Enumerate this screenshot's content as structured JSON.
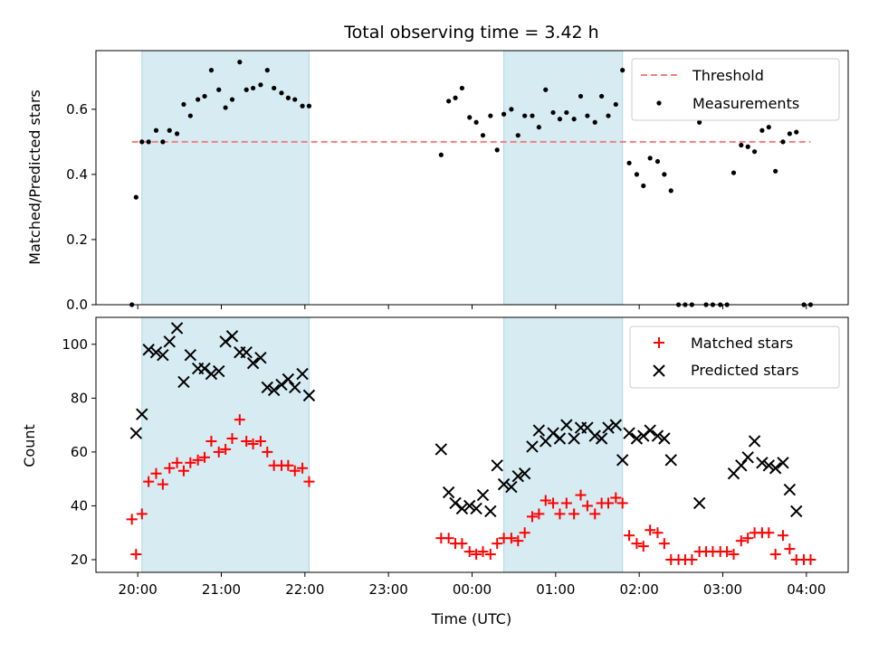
{
  "chart_data": {
    "type": "scatter",
    "title": "Total observing time = 3.42 h",
    "xlabel": "Time (UTC)",
    "x_ticks": [
      "20:00",
      "21:00",
      "22:00",
      "23:00",
      "00:00",
      "01:00",
      "02:00",
      "03:00",
      "04:00"
    ],
    "x_range_hours": [
      19.5,
      28.5
    ],
    "shaded_intervals": [
      [
        20.05,
        22.05
      ],
      [
        24.38,
        25.8
      ]
    ],
    "colors": {
      "shade": "#add8e6",
      "threshold": "#f08080",
      "measurements": "#000000",
      "matched": "#ff0000",
      "predicted": "#000000"
    },
    "top": {
      "ylabel": "Matched/Predicted stars",
      "ylim": [
        0,
        0.78
      ],
      "y_ticks": [
        "0.0",
        "0.2",
        "0.4",
        "0.6"
      ],
      "threshold": {
        "name": "Threshold",
        "y": 0.5,
        "x_range": [
          19.93,
          28.05
        ]
      },
      "measurements": {
        "name": "Measurements",
        "points": [
          [
            19.93,
            0.0
          ],
          [
            19.98,
            0.33
          ],
          [
            20.05,
            0.5
          ],
          [
            20.13,
            0.5
          ],
          [
            20.22,
            0.535
          ],
          [
            20.3,
            0.5
          ],
          [
            20.38,
            0.535
          ],
          [
            20.47,
            0.525
          ],
          [
            20.55,
            0.615
          ],
          [
            20.63,
            0.58
          ],
          [
            20.72,
            0.63
          ],
          [
            20.8,
            0.64
          ],
          [
            20.88,
            0.72
          ],
          [
            20.97,
            0.66
          ],
          [
            21.05,
            0.605
          ],
          [
            21.13,
            0.63
          ],
          [
            21.22,
            0.745
          ],
          [
            21.3,
            0.66
          ],
          [
            21.38,
            0.665
          ],
          [
            21.47,
            0.675
          ],
          [
            21.55,
            0.72
          ],
          [
            21.63,
            0.665
          ],
          [
            21.72,
            0.65
          ],
          [
            21.8,
            0.635
          ],
          [
            21.88,
            0.63
          ],
          [
            21.97,
            0.61
          ],
          [
            22.05,
            0.61
          ],
          [
            23.63,
            0.46
          ],
          [
            23.72,
            0.625
          ],
          [
            23.8,
            0.635
          ],
          [
            23.88,
            0.665
          ],
          [
            23.97,
            0.575
          ],
          [
            24.05,
            0.56
          ],
          [
            24.13,
            0.52
          ],
          [
            24.22,
            0.58
          ],
          [
            24.3,
            0.475
          ],
          [
            24.38,
            0.585
          ],
          [
            24.47,
            0.6
          ],
          [
            24.55,
            0.52
          ],
          [
            24.63,
            0.58
          ],
          [
            24.72,
            0.58
          ],
          [
            24.8,
            0.545
          ],
          [
            24.88,
            0.66
          ],
          [
            24.97,
            0.59
          ],
          [
            25.05,
            0.57
          ],
          [
            25.13,
            0.59
          ],
          [
            25.22,
            0.57
          ],
          [
            25.3,
            0.64
          ],
          [
            25.38,
            0.58
          ],
          [
            25.47,
            0.56
          ],
          [
            25.55,
            0.64
          ],
          [
            25.63,
            0.58
          ],
          [
            25.72,
            0.615
          ],
          [
            25.8,
            0.72
          ],
          [
            25.88,
            0.435
          ],
          [
            25.97,
            0.4
          ],
          [
            26.05,
            0.365
          ],
          [
            26.13,
            0.45
          ],
          [
            26.22,
            0.44
          ],
          [
            26.3,
            0.4
          ],
          [
            26.38,
            0.35
          ],
          [
            26.47,
            0.0
          ],
          [
            26.55,
            0.0
          ],
          [
            26.63,
            0.0
          ],
          [
            26.72,
            0.56
          ],
          [
            26.8,
            0.0
          ],
          [
            26.88,
            0.0
          ],
          [
            26.97,
            0.0
          ],
          [
            27.05,
            0.0
          ],
          [
            27.13,
            0.405
          ],
          [
            27.22,
            0.49
          ],
          [
            27.3,
            0.485
          ],
          [
            27.38,
            0.47
          ],
          [
            27.47,
            0.535
          ],
          [
            27.55,
            0.545
          ],
          [
            27.63,
            0.41
          ],
          [
            27.72,
            0.5
          ],
          [
            27.8,
            0.525
          ],
          [
            27.88,
            0.53
          ],
          [
            27.97,
            0.0
          ],
          [
            28.05,
            0.0
          ]
        ]
      },
      "legend": [
        "Threshold",
        "Measurements"
      ]
    },
    "bottom": {
      "ylabel": "Count",
      "ylim": [
        15.3,
        110
      ],
      "y_ticks": [
        "20",
        "40",
        "60",
        "80",
        "100"
      ],
      "matched": {
        "name": "Matched stars",
        "points": [
          [
            19.93,
            35
          ],
          [
            19.98,
            22
          ],
          [
            20.05,
            37
          ],
          [
            20.13,
            49
          ],
          [
            20.22,
            52
          ],
          [
            20.3,
            48
          ],
          [
            20.38,
            54
          ],
          [
            20.47,
            56
          ],
          [
            20.55,
            53
          ],
          [
            20.63,
            56
          ],
          [
            20.72,
            57
          ],
          [
            20.8,
            58
          ],
          [
            20.88,
            64
          ],
          [
            20.97,
            60
          ],
          [
            21.05,
            61
          ],
          [
            21.13,
            65
          ],
          [
            21.22,
            72
          ],
          [
            21.3,
            64
          ],
          [
            21.38,
            63
          ],
          [
            21.47,
            64
          ],
          [
            21.55,
            60
          ],
          [
            21.63,
            55
          ],
          [
            21.72,
            55
          ],
          [
            21.8,
            55
          ],
          [
            21.88,
            53
          ],
          [
            21.97,
            54
          ],
          [
            22.05,
            49
          ],
          [
            23.63,
            28
          ],
          [
            23.72,
            28
          ],
          [
            23.8,
            26
          ],
          [
            23.88,
            26
          ],
          [
            23.97,
            23
          ],
          [
            24.05,
            22
          ],
          [
            24.13,
            23
          ],
          [
            24.22,
            22
          ],
          [
            24.3,
            26
          ],
          [
            24.38,
            28
          ],
          [
            24.47,
            28
          ],
          [
            24.55,
            27
          ],
          [
            24.63,
            30
          ],
          [
            24.72,
            36
          ],
          [
            24.8,
            37
          ],
          [
            24.88,
            42
          ],
          [
            24.97,
            41
          ],
          [
            25.05,
            37
          ],
          [
            25.13,
            41
          ],
          [
            25.22,
            37
          ],
          [
            25.3,
            44
          ],
          [
            25.38,
            40
          ],
          [
            25.47,
            37
          ],
          [
            25.55,
            41
          ],
          [
            25.63,
            41
          ],
          [
            25.72,
            43
          ],
          [
            25.8,
            41
          ],
          [
            25.88,
            29
          ],
          [
            25.97,
            26
          ],
          [
            26.05,
            25
          ],
          [
            26.13,
            31
          ],
          [
            26.22,
            30
          ],
          [
            26.3,
            26
          ],
          [
            26.38,
            20
          ],
          [
            26.47,
            20
          ],
          [
            26.55,
            20
          ],
          [
            26.63,
            20
          ],
          [
            26.72,
            23
          ],
          [
            26.8,
            23
          ],
          [
            26.88,
            23
          ],
          [
            26.97,
            23
          ],
          [
            27.05,
            23
          ],
          [
            27.13,
            22
          ],
          [
            27.22,
            27
          ],
          [
            27.3,
            28
          ],
          [
            27.38,
            30
          ],
          [
            27.47,
            30
          ],
          [
            27.55,
            30
          ],
          [
            27.63,
            22
          ],
          [
            27.72,
            29
          ],
          [
            27.8,
            24
          ],
          [
            27.88,
            20
          ],
          [
            27.97,
            20
          ],
          [
            28.05,
            20
          ]
        ]
      },
      "predicted": {
        "name": "Predicted stars",
        "points": [
          [
            19.98,
            67
          ],
          [
            20.05,
            74
          ],
          [
            20.13,
            98
          ],
          [
            20.22,
            97
          ],
          [
            20.3,
            96
          ],
          [
            20.38,
            101
          ],
          [
            20.47,
            106
          ],
          [
            20.55,
            86
          ],
          [
            20.63,
            96
          ],
          [
            20.72,
            91
          ],
          [
            20.8,
            91
          ],
          [
            20.88,
            89
          ],
          [
            20.97,
            90
          ],
          [
            21.05,
            101
          ],
          [
            21.13,
            103
          ],
          [
            21.22,
            97
          ],
          [
            21.3,
            97
          ],
          [
            21.38,
            93
          ],
          [
            21.47,
            95
          ],
          [
            21.55,
            84
          ],
          [
            21.63,
            83
          ],
          [
            21.72,
            85
          ],
          [
            21.8,
            87
          ],
          [
            21.88,
            84
          ],
          [
            21.97,
            89
          ],
          [
            22.05,
            81
          ],
          [
            23.63,
            61
          ],
          [
            23.72,
            45
          ],
          [
            23.8,
            41
          ],
          [
            23.88,
            39
          ],
          [
            23.97,
            40
          ],
          [
            24.05,
            39
          ],
          [
            24.13,
            44
          ],
          [
            24.22,
            38
          ],
          [
            24.3,
            55
          ],
          [
            24.38,
            48
          ],
          [
            24.47,
            47
          ],
          [
            24.55,
            51
          ],
          [
            24.63,
            52
          ],
          [
            24.72,
            62
          ],
          [
            24.8,
            68
          ],
          [
            24.88,
            64
          ],
          [
            24.97,
            67
          ],
          [
            25.05,
            65
          ],
          [
            25.13,
            70
          ],
          [
            25.22,
            65
          ],
          [
            25.3,
            69
          ],
          [
            25.38,
            69
          ],
          [
            25.47,
            66
          ],
          [
            25.55,
            65
          ],
          [
            25.63,
            69
          ],
          [
            25.72,
            70
          ],
          [
            25.8,
            57
          ],
          [
            25.88,
            67
          ],
          [
            25.97,
            65
          ],
          [
            26.05,
            66
          ],
          [
            26.13,
            68
          ],
          [
            26.22,
            66
          ],
          [
            26.3,
            65
          ],
          [
            26.38,
            57
          ],
          [
            26.72,
            41
          ],
          [
            27.13,
            52
          ],
          [
            27.22,
            55
          ],
          [
            27.3,
            58
          ],
          [
            27.38,
            64
          ],
          [
            27.47,
            56
          ],
          [
            27.55,
            55
          ],
          [
            27.63,
            54
          ],
          [
            27.72,
            56
          ],
          [
            27.8,
            46
          ],
          [
            27.88,
            38
          ]
        ]
      },
      "legend": [
        "Matched stars",
        "Predicted stars"
      ]
    }
  }
}
